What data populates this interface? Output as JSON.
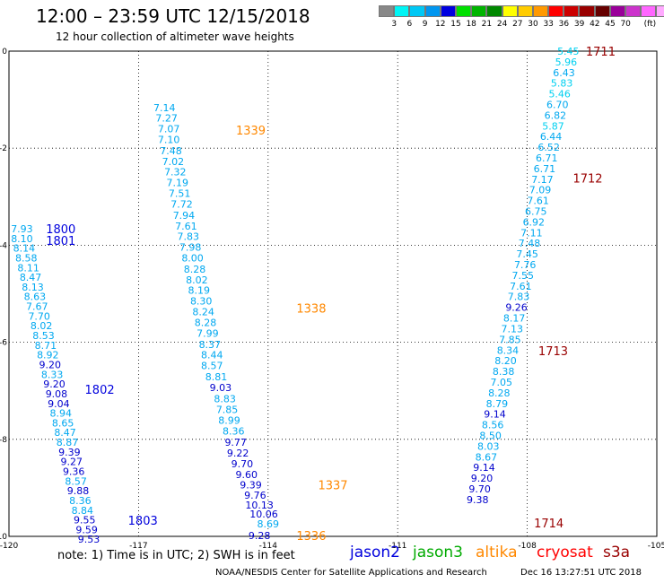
{
  "header": {
    "title": "12:00 – 23:59 UTC 12/15/2018",
    "subtitle": "12 hour collection of altimeter wave heights"
  },
  "colorbar": {
    "colors": [
      "#888888",
      "#00f5f5",
      "#00c8f5",
      "#0096f0",
      "#0000e0",
      "#00e000",
      "#00b400",
      "#008800",
      "#ffff00",
      "#ffcc00",
      "#ff9900",
      "#ff0000",
      "#cc0000",
      "#990000",
      "#660000",
      "#990099",
      "#cc33cc",
      "#ff66ff",
      "#ffaaff",
      "#000000"
    ],
    "labels": [
      "3",
      "6",
      "9",
      "12",
      "15",
      "18",
      "21",
      "24",
      "27",
      "30",
      "33",
      "36",
      "39",
      "42",
      "45",
      "70",
      "(ft)"
    ]
  },
  "axes": {
    "x_ticks": [
      "-120",
      "-117",
      "-114",
      "-111",
      "-108",
      "-105"
    ],
    "y_ticks": [
      "0",
      "-2",
      "-4",
      "-6",
      "-8",
      "-10"
    ]
  },
  "chart_data": {
    "type": "scatter",
    "xlim": [
      -120,
      -105
    ],
    "ylim": [
      -10,
      0
    ],
    "grid": true,
    "tracks": [
      {
        "name": "1336",
        "satellite": "altika",
        "label_points": [
          {
            "text": "1336",
            "x": -113.0,
            "y": -9.98
          }
        ],
        "values": [
          {
            "v": "9.28",
            "x": -114.2,
            "y": -9.98
          },
          {
            "v": "8.69",
            "x": -114.0,
            "y": -9.74
          },
          {
            "v": "10.06",
            "x": -114.1,
            "y": -9.54
          },
          {
            "v": "10.13",
            "x": -114.2,
            "y": -9.35
          },
          {
            "v": "9.76",
            "x": -114.3,
            "y": -9.15
          },
          {
            "v": "9.39",
            "x": -114.4,
            "y": -8.94
          },
          {
            "v": "9.60",
            "x": -114.5,
            "y": -8.72
          },
          {
            "v": "9.70",
            "x": -114.6,
            "y": -8.5
          },
          {
            "v": "9.22",
            "x": -114.7,
            "y": -8.28
          },
          {
            "v": "9.77",
            "x": -114.75,
            "y": -8.06
          }
        ]
      },
      {
        "name": "1337",
        "satellite": "altika",
        "label_points": [
          {
            "text": "1337",
            "x": -112.5,
            "y": -8.94
          }
        ]
      },
      {
        "name": "1338",
        "satellite": "altika",
        "label_points": [
          {
            "text": "1338",
            "x": -113.0,
            "y": -5.3
          }
        ],
        "values": [
          {
            "v": "8.36",
            "x": -114.8,
            "y": -7.83
          },
          {
            "v": "8.99",
            "x": -114.9,
            "y": -7.61
          },
          {
            "v": "7.85",
            "x": -114.95,
            "y": -7.38
          },
          {
            "v": "8.83",
            "x": -115.0,
            "y": -7.16
          },
          {
            "v": "9.03",
            "x": -115.1,
            "y": -6.93
          },
          {
            "v": "8.81",
            "x": -115.2,
            "y": -6.71
          },
          {
            "v": "8.57",
            "x": -115.3,
            "y": -6.48
          },
          {
            "v": "8.44",
            "x": -115.3,
            "y": -6.26
          },
          {
            "v": "8.37",
            "x": -115.35,
            "y": -6.04
          },
          {
            "v": "7.99",
            "x": -115.4,
            "y": -5.81
          },
          {
            "v": "8.28",
            "x": -115.45,
            "y": -5.59
          },
          {
            "v": "8.24",
            "x": -115.5,
            "y": -5.37
          },
          {
            "v": "8.30",
            "x": -115.55,
            "y": -5.15
          },
          {
            "v": "8.19",
            "x": -115.6,
            "y": -4.93
          },
          {
            "v": "8.02",
            "x": -115.65,
            "y": -4.71
          },
          {
            "v": "8.28",
            "x": -115.7,
            "y": -4.49
          },
          {
            "v": "8.00",
            "x": -115.75,
            "y": -4.26
          }
        ]
      },
      {
        "name": "1339",
        "satellite": "altika",
        "label_points": [
          {
            "text": "1339",
            "x": -114.4,
            "y": -1.63
          }
        ],
        "values": [
          {
            "v": "7.98",
            "x": -115.8,
            "y": -4.04
          },
          {
            "v": "7.83",
            "x": -115.85,
            "y": -3.82
          },
          {
            "v": "7.61",
            "x": -115.9,
            "y": -3.6
          },
          {
            "v": "7.94",
            "x": -115.95,
            "y": -3.38
          },
          {
            "v": "7.72",
            "x": -116.0,
            "y": -3.15
          },
          {
            "v": "7.51",
            "x": -116.05,
            "y": -2.93
          },
          {
            "v": "7.19",
            "x": -116.1,
            "y": -2.71
          },
          {
            "v": "7.32",
            "x": -116.15,
            "y": -2.49
          },
          {
            "v": "7.02",
            "x": -116.2,
            "y": -2.27
          },
          {
            "v": "7.48",
            "x": -116.25,
            "y": -2.05
          },
          {
            "v": "7.10",
            "x": -116.3,
            "y": -1.82
          },
          {
            "v": "7.07",
            "x": -116.3,
            "y": -1.6
          },
          {
            "v": "7.27",
            "x": -116.35,
            "y": -1.38
          },
          {
            "v": "7.14",
            "x": -116.4,
            "y": -1.16
          }
        ]
      },
      {
        "name": "1711-1714",
        "satellite": "s3a",
        "label_points": [
          {
            "text": "1711",
            "x": -106.3,
            "y": 0.0
          },
          {
            "text": "1712",
            "x": -106.6,
            "y": -2.62
          },
          {
            "text": "1713",
            "x": -107.4,
            "y": -6.17
          },
          {
            "text": "1714",
            "x": -107.5,
            "y": -9.72
          }
        ],
        "values": [
          {
            "v": "5.45",
            "x": -107.05,
            "y": 0.0
          },
          {
            "v": "5.96",
            "x": -107.1,
            "y": -0.22
          },
          {
            "v": "6.43",
            "x": -107.15,
            "y": -0.44
          },
          {
            "v": "5.83",
            "x": -107.2,
            "y": -0.66
          },
          {
            "v": "5.46",
            "x": -107.25,
            "y": -0.88
          },
          {
            "v": "6.70",
            "x": -107.3,
            "y": -1.1
          },
          {
            "v": "6.82",
            "x": -107.35,
            "y": -1.32
          },
          {
            "v": "5.87",
            "x": -107.4,
            "y": -1.54
          },
          {
            "v": "6.44",
            "x": -107.45,
            "y": -1.76
          },
          {
            "v": "6.52",
            "x": -107.5,
            "y": -1.98
          },
          {
            "v": "6.71",
            "x": -107.55,
            "y": -2.2
          },
          {
            "v": "6.71",
            "x": -107.6,
            "y": -2.42
          },
          {
            "v": "7.17",
            "x": -107.65,
            "y": -2.64
          },
          {
            "v": "7.09",
            "x": -107.7,
            "y": -2.86
          },
          {
            "v": "7.61",
            "x": -107.75,
            "y": -3.08
          },
          {
            "v": "6.75",
            "x": -107.8,
            "y": -3.3
          },
          {
            "v": "6.92",
            "x": -107.85,
            "y": -3.52
          },
          {
            "v": "7.11",
            "x": -107.9,
            "y": -3.74
          },
          {
            "v": "7.48",
            "x": -107.95,
            "y": -3.96
          },
          {
            "v": "7.45",
            "x": -108.0,
            "y": -4.18
          },
          {
            "v": "7.76",
            "x": -108.05,
            "y": -4.4
          },
          {
            "v": "7.55",
            "x": -108.1,
            "y": -4.62
          },
          {
            "v": "7.61",
            "x": -108.15,
            "y": -4.84
          },
          {
            "v": "7.83",
            "x": -108.2,
            "y": -5.06
          },
          {
            "v": "9.26",
            "x": -108.25,
            "y": -5.28
          },
          {
            "v": "8.17",
            "x": -108.3,
            "y": -5.5
          },
          {
            "v": "7.13",
            "x": -108.35,
            "y": -5.72
          },
          {
            "v": "7.85",
            "x": -108.4,
            "y": -5.94
          },
          {
            "v": "8.34",
            "x": -108.45,
            "y": -6.16
          },
          {
            "v": "8.20",
            "x": -108.5,
            "y": -6.38
          },
          {
            "v": "8.38",
            "x": -108.55,
            "y": -6.6
          },
          {
            "v": "7.05",
            "x": -108.6,
            "y": -6.82
          },
          {
            "v": "8.28",
            "x": -108.65,
            "y": -7.04
          },
          {
            "v": "8.79",
            "x": -108.7,
            "y": -7.26
          },
          {
            "v": "9.14",
            "x": -108.75,
            "y": -7.48
          },
          {
            "v": "8.56",
            "x": -108.8,
            "y": -7.7
          },
          {
            "v": "8.50",
            "x": -108.85,
            "y": -7.92
          },
          {
            "v": "8.03",
            "x": -108.9,
            "y": -8.14
          },
          {
            "v": "8.67",
            "x": -108.95,
            "y": -8.36
          },
          {
            "v": "9.14",
            "x": -109.0,
            "y": -8.58
          },
          {
            "v": "9.20",
            "x": -109.05,
            "y": -8.8
          },
          {
            "v": "9.70",
            "x": -109.1,
            "y": -9.02
          },
          {
            "v": "9.38",
            "x": -109.15,
            "y": -9.24
          }
        ]
      },
      {
        "name": "1800-1803",
        "satellite": "jason2",
        "label_points": [
          {
            "text": "1800",
            "x": -118.8,
            "y": -3.66
          },
          {
            "text": "1801",
            "x": -118.8,
            "y": -3.9
          },
          {
            "text": "1802",
            "x": -117.9,
            "y": -6.97
          },
          {
            "text": "1803",
            "x": -116.9,
            "y": -9.67
          }
        ],
        "values": [
          {
            "v": "7.93",
            "x": -119.7,
            "y": -3.66
          },
          {
            "v": "8.10",
            "x": -119.7,
            "y": -3.86
          },
          {
            "v": "8.14",
            "x": -119.65,
            "y": -4.06
          },
          {
            "v": "8.58",
            "x": -119.6,
            "y": -4.26
          },
          {
            "v": "8.11",
            "x": -119.55,
            "y": -4.46
          },
          {
            "v": "8.47",
            "x": -119.5,
            "y": -4.66
          },
          {
            "v": "8.13",
            "x": -119.45,
            "y": -4.86
          },
          {
            "v": "8.63",
            "x": -119.4,
            "y": -5.06
          },
          {
            "v": "7.67",
            "x": -119.35,
            "y": -5.26
          },
          {
            "v": "7.70",
            "x": -119.3,
            "y": -5.46
          },
          {
            "v": "8.02",
            "x": -119.25,
            "y": -5.66
          },
          {
            "v": "8.53",
            "x": -119.2,
            "y": -5.86
          },
          {
            "v": "8.71",
            "x": -119.15,
            "y": -6.06
          },
          {
            "v": "8.92",
            "x": -119.1,
            "y": -6.26
          },
          {
            "v": "9.20",
            "x": -119.05,
            "y": -6.46
          },
          {
            "v": "8.33",
            "x": -119.0,
            "y": -6.66
          },
          {
            "v": "9.20",
            "x": -118.95,
            "y": -6.86
          },
          {
            "v": "9.08",
            "x": -118.9,
            "y": -7.06
          },
          {
            "v": "9.04",
            "x": -118.85,
            "y": -7.26
          },
          {
            "v": "8.94",
            "x": -118.8,
            "y": -7.46
          },
          {
            "v": "8.65",
            "x": -118.75,
            "y": -7.66
          },
          {
            "v": "8.47",
            "x": -118.7,
            "y": -7.86
          },
          {
            "v": "8.87",
            "x": -118.65,
            "y": -8.06
          },
          {
            "v": "9.39",
            "x": -118.6,
            "y": -8.26
          },
          {
            "v": "9.27",
            "x": -118.55,
            "y": -8.46
          },
          {
            "v": "9.36",
            "x": -118.5,
            "y": -8.66
          },
          {
            "v": "8.57",
            "x": -118.45,
            "y": -8.86
          },
          {
            "v": "9.88",
            "x": -118.4,
            "y": -9.06
          },
          {
            "v": "8.36",
            "x": -118.35,
            "y": -9.26
          },
          {
            "v": "8.84",
            "x": -118.3,
            "y": -9.46
          },
          {
            "v": "9.55",
            "x": -118.25,
            "y": -9.66
          },
          {
            "v": "9.59",
            "x": -118.2,
            "y": -9.86
          },
          {
            "v": "9.53",
            "x": -118.15,
            "y": -10.06
          }
        ]
      }
    ]
  },
  "footer": {
    "note": "note: 1) Time is in UTC; 2) SWH is in feet",
    "legend": [
      {
        "name": "jason2",
        "color": "#0000dd"
      },
      {
        "name": "jason3",
        "color": "#00aa00"
      },
      {
        "name": "altika",
        "color": "#ff8800"
      },
      {
        "name": "cryosat",
        "color": "#ff0000"
      },
      {
        "name": "s3a",
        "color": "#990000"
      }
    ],
    "credit": "NOAA/NESDIS Center for Satellite Applications and Research",
    "timestamp": "Dec 16 13:27:51 UTC 2018"
  }
}
